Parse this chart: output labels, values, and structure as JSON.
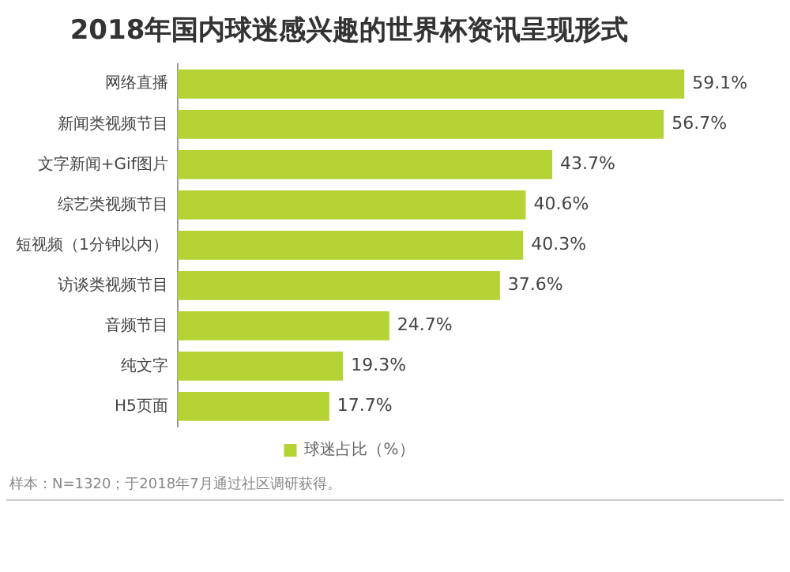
{
  "chart_data": {
    "type": "bar",
    "orientation": "horizontal",
    "title": "2018年国内球迷感兴趣的世界杯资讯呈现形式",
    "categories": [
      "网络直播",
      "新闻类视频节目",
      "文字新闻+Gif图片",
      "综艺类视频节目",
      "短视频（1分钟以内）",
      "访谈类视频节目",
      "音频节目",
      "纯文字",
      "H5页面"
    ],
    "series": [
      {
        "name": "球迷占比（%）",
        "color": "#b5d334",
        "values": [
          59.1,
          56.7,
          43.7,
          40.6,
          40.3,
          37.6,
          24.7,
          19.3,
          17.7
        ],
        "value_labels": [
          "59.1%",
          "56.7%",
          "43.7%",
          "40.6%",
          "40.3%",
          "37.6%",
          "24.7%",
          "19.3%",
          "17.7%"
        ]
      }
    ],
    "legend": "bottom",
    "annotations": [
      "样本：N=1320；于2018年7月通过社区调研获得。"
    ]
  }
}
